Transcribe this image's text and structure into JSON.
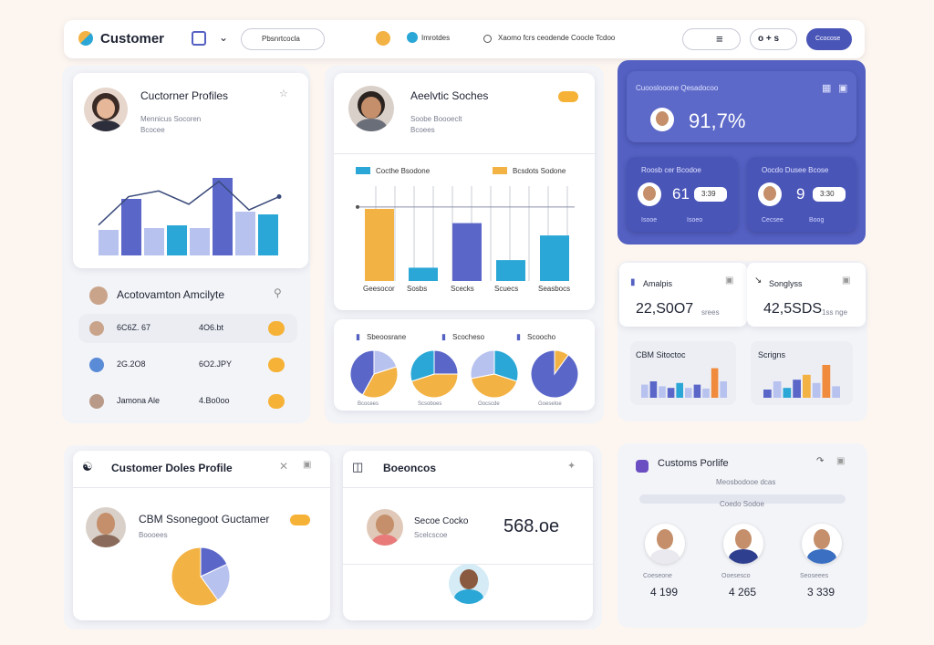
{
  "colors": {
    "accent": "#5460c2",
    "accent_dark": "#4a55b8",
    "orange": "#f3b244",
    "blue": "#5a67c9",
    "light_blue": "#b8c2ef",
    "teal": "#2aa7d6",
    "badge": "#f6b237"
  },
  "nav": {
    "app_title": "Customer",
    "search_label": "Pbsnrtcocla",
    "sun_label": "",
    "middle_label": "Imrotdes",
    "wide_label": "Xaomo fcrs ceodende Coocle Tcdoo",
    "btn_one": "",
    "btn_two": "o + s",
    "btn_primary": "Ccocose"
  },
  "profiles_card": {
    "title": "Cuctorner Profiles",
    "line1": "Mennicus Socoren",
    "line2": "Bcocee"
  },
  "analytics_card": {
    "title": "Aeelvtic Soches",
    "line1": "Soobe Boooeclt",
    "line2": "Bcoees",
    "legend": [
      "Cocthe Bsodone",
      "Bcsdots Sodone"
    ],
    "categories": [
      "Geesocor",
      "Sosbs",
      "Scecks",
      "Scuecs",
      "Seasbocs"
    ]
  },
  "chart1": {
    "bars": [
      0.28,
      0.62,
      0.3,
      0.33,
      0.3,
      0.85,
      0.48,
      0.45
    ],
    "line": [
      0.32,
      0.62,
      0.68,
      0.54,
      0.78,
      0.48,
      0.62
    ]
  },
  "chart_data": {
    "type": "bar",
    "categories": [
      "Geesocor",
      "Sosbs",
      "Scecks",
      "Scuecs",
      "Seasbocs"
    ],
    "series": [
      {
        "name": "Cocthe Bsodone",
        "values": [
          76,
          14,
          61,
          22,
          48
        ]
      }
    ],
    "line_level": 78
  },
  "stat_panel": {
    "main_value": "91,7%",
    "main_label": "Cuooslooone Qesadocoo",
    "card1_label": "Roosb cer Bcodoe",
    "card1_value": "61",
    "card1_badge": "3:39",
    "card1_foot1": "Isooe",
    "card1_foot2": "Isoeo",
    "card2_label": "Oocdo Dusee Bcose",
    "card2_value": "9",
    "card2_badge": "3:30",
    "card2_foot1": "Cecsee",
    "card2_foot2": "Boog"
  },
  "accounts": {
    "title": "Acotovamton Amcilyte",
    "rows": [
      {
        "name": "6C6Z. 67",
        "value": "4O6.bt"
      },
      {
        "name": "2G.2O8",
        "value": "6O2.JPY"
      },
      {
        "name": "Jamona Ale",
        "value": "4.Bo0oo"
      }
    ]
  },
  "pies": {
    "labels": [
      "Sbeoosrane",
      "Scocheso",
      "Scoocho"
    ],
    "captions": [
      "Bcocees",
      "Scsoboes",
      "Oocscde",
      "Goeseloe"
    ],
    "values": [
      [
        0.2,
        0.38,
        0.42
      ],
      [
        0.25,
        0.45,
        0.3
      ],
      [
        0.3,
        0.42,
        0.28
      ],
      [
        0.1,
        0.9
      ]
    ]
  },
  "right_mid": {
    "left_label": "Amalpis",
    "left_value": "22,S0O7",
    "left_unit": "srees",
    "right_label": "Songlyss",
    "right_value": "42,5SDS",
    "right_unit": "1ss nge",
    "box1_label": "CBM Sitoctoc",
    "box2_label": "Scrigns",
    "box1_bars": [
      0.4,
      0.5,
      0.35,
      0.3,
      0.45,
      0.3,
      0.4,
      0.28,
      0.9,
      0.5
    ],
    "box2_bars": [
      0.25,
      0.5,
      0.3,
      0.55,
      0.7,
      0.45,
      1.0,
      0.35
    ]
  },
  "bottom_left": {
    "title": "Customer Doles Profile",
    "subtitle": "CBM Ssonegoot Guctamer",
    "sub2": "Boooees",
    "pie": [
      0.18,
      0.22,
      0.6
    ]
  },
  "bottom_mid": {
    "title": "Boeoncos",
    "name": "Secoe Cocko",
    "sub": "Scelcscoe",
    "value": "568.oe"
  },
  "bottom_right": {
    "title": "Customs Porlife",
    "sub1": "Meosbodooe dcas",
    "sub2": "Coedo Sodoe",
    "people": [
      {
        "role": "Coeseone",
        "value": "4 199"
      },
      {
        "role": "Ooesesco",
        "value": "4 265"
      },
      {
        "role": "Seoseees",
        "value": "3 339"
      }
    ]
  }
}
